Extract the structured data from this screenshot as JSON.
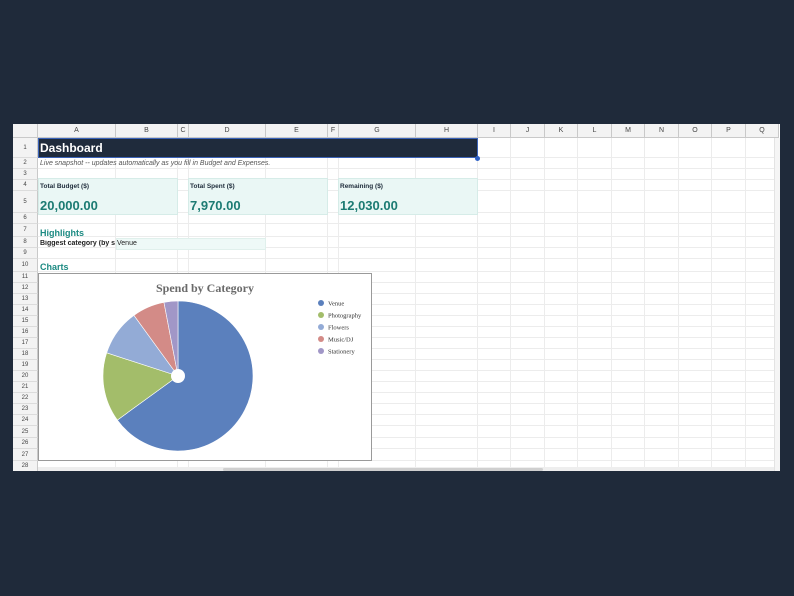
{
  "columns": [
    "A",
    "B",
    "C",
    "D",
    "E",
    "F",
    "G",
    "H",
    "I",
    "J",
    "K",
    "L",
    "M",
    "N",
    "O",
    "P",
    "Q"
  ],
  "rows": [
    "1",
    "2",
    "3",
    "4",
    "5",
    "6",
    "7",
    "8",
    "9",
    "10",
    "11",
    "12",
    "13",
    "14",
    "15",
    "16",
    "17",
    "18",
    "19",
    "20",
    "21",
    "22",
    "23",
    "24",
    "25",
    "26",
    "27",
    "28"
  ],
  "dashboard": {
    "title": "Dashboard",
    "subtitle": "Live snapshot -- updates automatically as you fill in Budget and Expenses.",
    "kpis": [
      {
        "label": "Total Budget ($)",
        "value": "20,000.00"
      },
      {
        "label": "Total Spent ($)",
        "value": "7,970.00"
      },
      {
        "label": "Remaining ($)",
        "value": "12,030.00"
      }
    ],
    "highlights_heading": "Highlights",
    "biggest_label": "Biggest category (by spend)",
    "biggest_value": "Venue",
    "charts_heading": "Charts"
  },
  "chart_data": {
    "type": "pie",
    "title": "Spend by Category",
    "categories": [
      "Venue",
      "Photography",
      "Flowers",
      "Music/DJ",
      "Stationery"
    ],
    "values": [
      65,
      15,
      10,
      7,
      3
    ],
    "colors": [
      "#5b80bd",
      "#a3bd6a",
      "#93abd6",
      "#d38b87",
      "#a197c7"
    ],
    "legend_position": "right",
    "donut_hole": true
  }
}
